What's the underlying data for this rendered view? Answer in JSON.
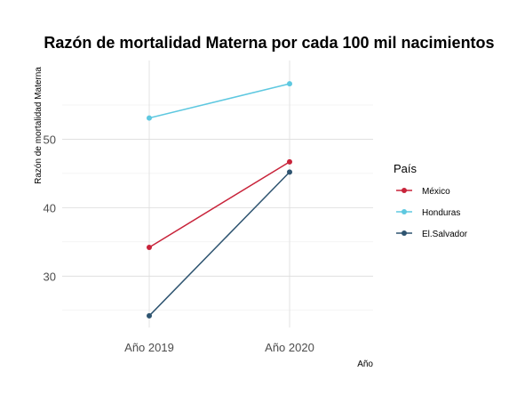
{
  "chart_data": {
    "type": "line",
    "title": "Razón de mortalidad Materna por cada 100 mil nacimientos",
    "xlabel": "Año",
    "ylabel": "Razón de mortalidad Materna",
    "categories": [
      "Año 2019",
      "Año 2020"
    ],
    "ylim": [
      22.5,
      61.5
    ],
    "yticks": [
      30,
      40,
      50
    ],
    "grid": true,
    "legend_title": "País",
    "legend_position": "right",
    "series": [
      {
        "name": "México",
        "color": "#c8233a",
        "values": [
          34.2,
          46.7
        ]
      },
      {
        "name": "Honduras",
        "color": "#5ec8e0",
        "values": [
          53.1,
          58.1
        ]
      },
      {
        "name": "El.Salvador",
        "color": "#2e5470",
        "values": [
          24.2,
          45.2
        ]
      }
    ]
  }
}
